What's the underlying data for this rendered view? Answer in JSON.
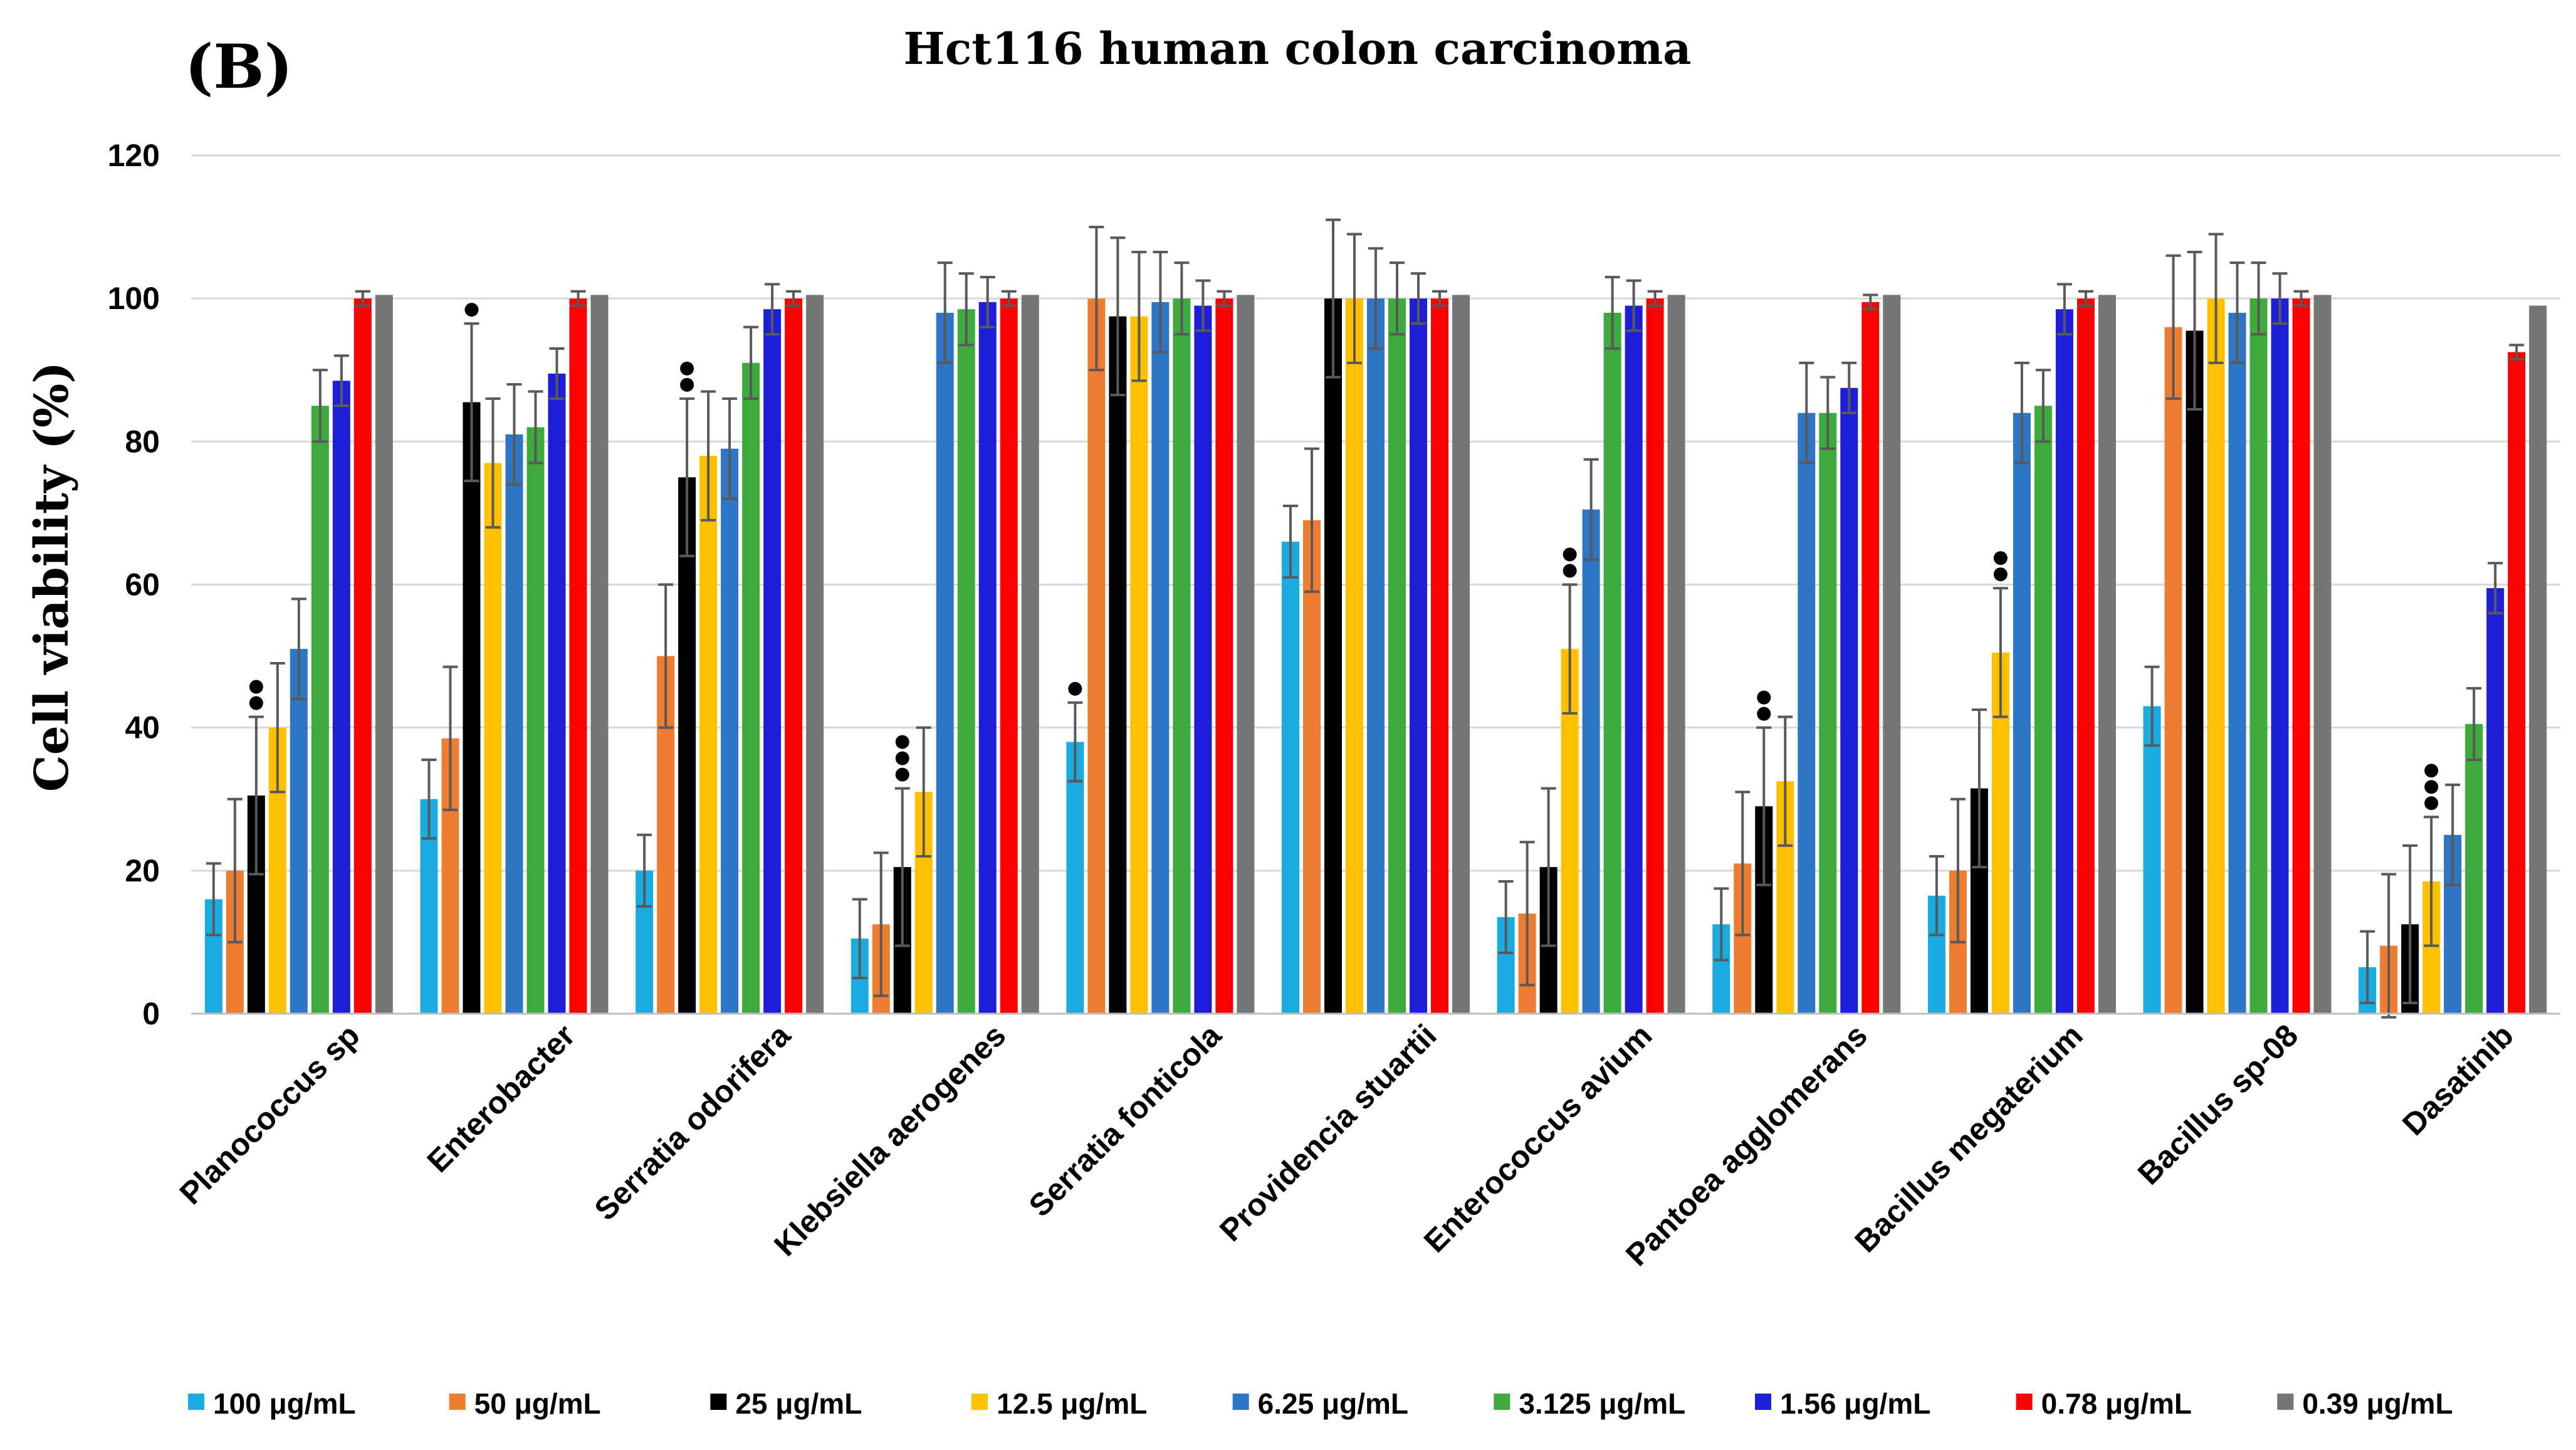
{
  "panel_label": "(B)",
  "chart_data": {
    "type": "bar",
    "title": "Hct116 human colon carcinoma",
    "xlabel": "",
    "ylabel": "Cell viability (%)",
    "ylim": [
      0,
      120
    ],
    "yticks": [
      0,
      20,
      40,
      60,
      80,
      100,
      120
    ],
    "grid": true,
    "legend_position": "bottom",
    "categories": [
      "Planococcus sp",
      "Enterobacter",
      "Serratia odorifera",
      "Klebsiella aerogenes",
      "Serratia fonticola",
      "Providencia stuartii",
      "Enterococcus avium",
      "Pantoea agglomerans",
      "Bacillus megaterium",
      "Bacillus sp-08",
      "Dasatinib"
    ],
    "series": [
      {
        "name": "100 μg/mL",
        "color": "#1AACE0",
        "values": [
          16,
          30,
          20,
          10.5,
          38,
          66,
          13.5,
          12.5,
          16.5,
          43,
          6.5
        ],
        "errors": [
          5,
          5.5,
          5,
          5.5,
          5.5,
          5,
          5,
          5,
          5.5,
          5.5,
          5
        ],
        "markers": [
          0,
          0,
          0,
          0,
          1,
          0,
          0,
          0,
          0,
          0,
          0
        ]
      },
      {
        "name": "50 μg/mL",
        "color": "#ED7D31",
        "values": [
          20,
          38.5,
          50,
          12.5,
          100,
          69,
          14,
          21,
          20,
          96,
          9.5
        ],
        "errors": [
          10,
          10,
          10,
          10,
          10,
          10,
          10,
          10,
          10,
          10,
          10
        ],
        "markers": [
          0,
          0,
          0,
          0,
          0,
          0,
          0,
          0,
          0,
          0,
          0
        ]
      },
      {
        "name": "25  μg/mL",
        "color": "#000000",
        "values": [
          30.5,
          85.5,
          75,
          20.5,
          97.5,
          100,
          20.5,
          29,
          31.5,
          95.5,
          12.5
        ],
        "errors": [
          11,
          11,
          11,
          11,
          11,
          11,
          11,
          11,
          11,
          11,
          11
        ],
        "markers": [
          2,
          1,
          2,
          3,
          0,
          0,
          0,
          2,
          0,
          0,
          0
        ]
      },
      {
        "name": "12.5  μg/mL",
        "color": "#FFC000",
        "values": [
          40,
          77,
          78,
          31,
          97.5,
          100,
          51,
          32.5,
          50.5,
          100,
          18.5
        ],
        "errors": [
          9,
          9,
          9,
          9,
          9,
          9,
          9,
          9,
          9,
          9,
          9
        ],
        "markers": [
          0,
          0,
          0,
          0,
          0,
          0,
          2,
          0,
          2,
          0,
          3
        ]
      },
      {
        "name": "6.25  μg/mL",
        "color": "#2E75C5",
        "values": [
          51,
          81,
          79,
          98,
          99.5,
          100,
          70.5,
          84,
          84,
          98,
          25
        ],
        "errors": [
          7,
          7,
          7,
          7,
          7,
          7,
          7,
          7,
          7,
          7,
          7
        ],
        "markers": [
          0,
          0,
          0,
          0,
          0,
          0,
          0,
          0,
          0,
          0,
          0
        ]
      },
      {
        "name": "3.125  μg/mL",
        "color": "#3DAA3D",
        "values": [
          85,
          82,
          91,
          98.5,
          100,
          100,
          98,
          84,
          85,
          100,
          40.5
        ],
        "errors": [
          5,
          5,
          5,
          5,
          5,
          5,
          5,
          5,
          5,
          5,
          5
        ],
        "markers": [
          0,
          0,
          0,
          0,
          0,
          0,
          0,
          0,
          0,
          0,
          0
        ]
      },
      {
        "name": "1.56 μg/mL",
        "color": "#1E1ED8",
        "values": [
          88.5,
          89.5,
          98.5,
          99.5,
          99,
          100,
          99,
          87.5,
          98.5,
          100,
          59.5
        ],
        "errors": [
          3.5,
          3.5,
          3.5,
          3.5,
          3.5,
          3.5,
          3.5,
          3.5,
          3.5,
          3.5,
          3.5
        ],
        "markers": [
          0,
          0,
          0,
          0,
          0,
          0,
          0,
          0,
          0,
          0,
          0
        ]
      },
      {
        "name": "0.78  μg/mL",
        "color": "#FF0000",
        "values": [
          100,
          100,
          100,
          100,
          100,
          100,
          100,
          99.5,
          100,
          100,
          92.5
        ],
        "errors": [
          1,
          1,
          1,
          1,
          1,
          1,
          1,
          1,
          1,
          1,
          1
        ],
        "markers": [
          0,
          0,
          0,
          0,
          0,
          0,
          0,
          0,
          0,
          0,
          0
        ]
      },
      {
        "name": "0.39  μg/mL",
        "color": "#767676",
        "values": [
          100.5,
          100.5,
          100.5,
          100.5,
          100.5,
          100.5,
          100.5,
          100.5,
          100.5,
          100.5,
          99
        ],
        "errors": [
          0,
          0,
          0,
          0,
          0,
          0,
          0,
          0,
          0,
          0,
          0
        ],
        "markers": [
          0,
          0,
          0,
          0,
          0,
          0,
          0,
          0,
          0,
          0,
          0
        ]
      }
    ]
  }
}
